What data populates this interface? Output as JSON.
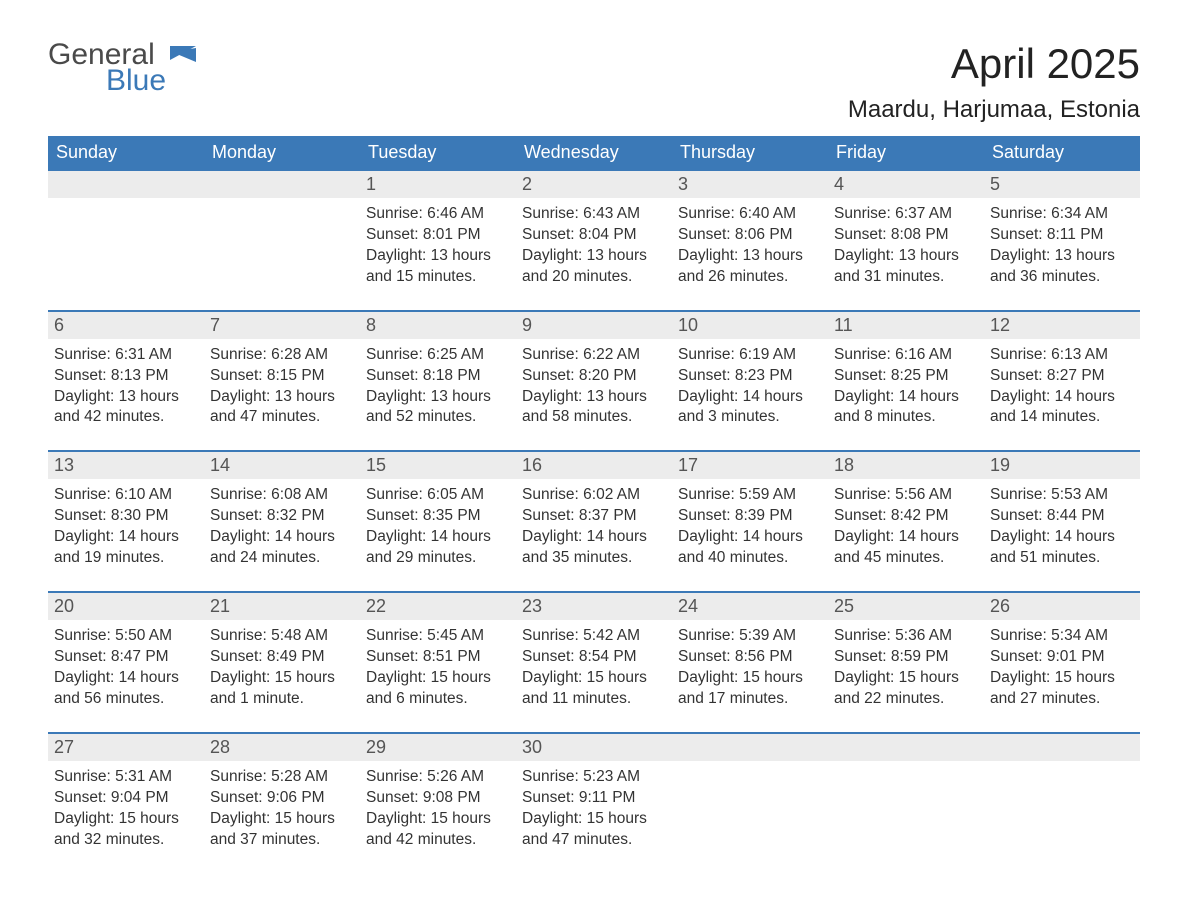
{
  "brand": {
    "word1": "General",
    "word2": "Blue",
    "word1_color": "#4a4a4a",
    "word2_color": "#3b79b7",
    "flag_color": "#3b79b7"
  },
  "header": {
    "month_title": "April 2025",
    "location": "Maardu, Harjumaa, Estonia",
    "title_fontsize": 42,
    "location_fontsize": 24
  },
  "colors": {
    "header_bg": "#3b79b7",
    "header_text": "#ffffff",
    "daynum_bg": "#ececec",
    "daynum_text": "#555555",
    "body_text": "#333333",
    "week_divider": "#3b79b7",
    "page_bg": "#ffffff"
  },
  "weekdays": [
    "Sunday",
    "Monday",
    "Tuesday",
    "Wednesday",
    "Thursday",
    "Friday",
    "Saturday"
  ],
  "calendar": {
    "type": "table",
    "columns": 7,
    "rows": 5,
    "weeks": [
      [
        {
          "day": null
        },
        {
          "day": null
        },
        {
          "day": "1",
          "sunrise": "Sunrise: 6:46 AM",
          "sunset": "Sunset: 8:01 PM",
          "daylight1": "Daylight: 13 hours",
          "daylight2": "and 15 minutes."
        },
        {
          "day": "2",
          "sunrise": "Sunrise: 6:43 AM",
          "sunset": "Sunset: 8:04 PM",
          "daylight1": "Daylight: 13 hours",
          "daylight2": "and 20 minutes."
        },
        {
          "day": "3",
          "sunrise": "Sunrise: 6:40 AM",
          "sunset": "Sunset: 8:06 PM",
          "daylight1": "Daylight: 13 hours",
          "daylight2": "and 26 minutes."
        },
        {
          "day": "4",
          "sunrise": "Sunrise: 6:37 AM",
          "sunset": "Sunset: 8:08 PM",
          "daylight1": "Daylight: 13 hours",
          "daylight2": "and 31 minutes."
        },
        {
          "day": "5",
          "sunrise": "Sunrise: 6:34 AM",
          "sunset": "Sunset: 8:11 PM",
          "daylight1": "Daylight: 13 hours",
          "daylight2": "and 36 minutes."
        }
      ],
      [
        {
          "day": "6",
          "sunrise": "Sunrise: 6:31 AM",
          "sunset": "Sunset: 8:13 PM",
          "daylight1": "Daylight: 13 hours",
          "daylight2": "and 42 minutes."
        },
        {
          "day": "7",
          "sunrise": "Sunrise: 6:28 AM",
          "sunset": "Sunset: 8:15 PM",
          "daylight1": "Daylight: 13 hours",
          "daylight2": "and 47 minutes."
        },
        {
          "day": "8",
          "sunrise": "Sunrise: 6:25 AM",
          "sunset": "Sunset: 8:18 PM",
          "daylight1": "Daylight: 13 hours",
          "daylight2": "and 52 minutes."
        },
        {
          "day": "9",
          "sunrise": "Sunrise: 6:22 AM",
          "sunset": "Sunset: 8:20 PM",
          "daylight1": "Daylight: 13 hours",
          "daylight2": "and 58 minutes."
        },
        {
          "day": "10",
          "sunrise": "Sunrise: 6:19 AM",
          "sunset": "Sunset: 8:23 PM",
          "daylight1": "Daylight: 14 hours",
          "daylight2": "and 3 minutes."
        },
        {
          "day": "11",
          "sunrise": "Sunrise: 6:16 AM",
          "sunset": "Sunset: 8:25 PM",
          "daylight1": "Daylight: 14 hours",
          "daylight2": "and 8 minutes."
        },
        {
          "day": "12",
          "sunrise": "Sunrise: 6:13 AM",
          "sunset": "Sunset: 8:27 PM",
          "daylight1": "Daylight: 14 hours",
          "daylight2": "and 14 minutes."
        }
      ],
      [
        {
          "day": "13",
          "sunrise": "Sunrise: 6:10 AM",
          "sunset": "Sunset: 8:30 PM",
          "daylight1": "Daylight: 14 hours",
          "daylight2": "and 19 minutes."
        },
        {
          "day": "14",
          "sunrise": "Sunrise: 6:08 AM",
          "sunset": "Sunset: 8:32 PM",
          "daylight1": "Daylight: 14 hours",
          "daylight2": "and 24 minutes."
        },
        {
          "day": "15",
          "sunrise": "Sunrise: 6:05 AM",
          "sunset": "Sunset: 8:35 PM",
          "daylight1": "Daylight: 14 hours",
          "daylight2": "and 29 minutes."
        },
        {
          "day": "16",
          "sunrise": "Sunrise: 6:02 AM",
          "sunset": "Sunset: 8:37 PM",
          "daylight1": "Daylight: 14 hours",
          "daylight2": "and 35 minutes."
        },
        {
          "day": "17",
          "sunrise": "Sunrise: 5:59 AM",
          "sunset": "Sunset: 8:39 PM",
          "daylight1": "Daylight: 14 hours",
          "daylight2": "and 40 minutes."
        },
        {
          "day": "18",
          "sunrise": "Sunrise: 5:56 AM",
          "sunset": "Sunset: 8:42 PM",
          "daylight1": "Daylight: 14 hours",
          "daylight2": "and 45 minutes."
        },
        {
          "day": "19",
          "sunrise": "Sunrise: 5:53 AM",
          "sunset": "Sunset: 8:44 PM",
          "daylight1": "Daylight: 14 hours",
          "daylight2": "and 51 minutes."
        }
      ],
      [
        {
          "day": "20",
          "sunrise": "Sunrise: 5:50 AM",
          "sunset": "Sunset: 8:47 PM",
          "daylight1": "Daylight: 14 hours",
          "daylight2": "and 56 minutes."
        },
        {
          "day": "21",
          "sunrise": "Sunrise: 5:48 AM",
          "sunset": "Sunset: 8:49 PM",
          "daylight1": "Daylight: 15 hours",
          "daylight2": "and 1 minute."
        },
        {
          "day": "22",
          "sunrise": "Sunrise: 5:45 AM",
          "sunset": "Sunset: 8:51 PM",
          "daylight1": "Daylight: 15 hours",
          "daylight2": "and 6 minutes."
        },
        {
          "day": "23",
          "sunrise": "Sunrise: 5:42 AM",
          "sunset": "Sunset: 8:54 PM",
          "daylight1": "Daylight: 15 hours",
          "daylight2": "and 11 minutes."
        },
        {
          "day": "24",
          "sunrise": "Sunrise: 5:39 AM",
          "sunset": "Sunset: 8:56 PM",
          "daylight1": "Daylight: 15 hours",
          "daylight2": "and 17 minutes."
        },
        {
          "day": "25",
          "sunrise": "Sunrise: 5:36 AM",
          "sunset": "Sunset: 8:59 PM",
          "daylight1": "Daylight: 15 hours",
          "daylight2": "and 22 minutes."
        },
        {
          "day": "26",
          "sunrise": "Sunrise: 5:34 AM",
          "sunset": "Sunset: 9:01 PM",
          "daylight1": "Daylight: 15 hours",
          "daylight2": "and 27 minutes."
        }
      ],
      [
        {
          "day": "27",
          "sunrise": "Sunrise: 5:31 AM",
          "sunset": "Sunset: 9:04 PM",
          "daylight1": "Daylight: 15 hours",
          "daylight2": "and 32 minutes."
        },
        {
          "day": "28",
          "sunrise": "Sunrise: 5:28 AM",
          "sunset": "Sunset: 9:06 PM",
          "daylight1": "Daylight: 15 hours",
          "daylight2": "and 37 minutes."
        },
        {
          "day": "29",
          "sunrise": "Sunrise: 5:26 AM",
          "sunset": "Sunset: 9:08 PM",
          "daylight1": "Daylight: 15 hours",
          "daylight2": "and 42 minutes."
        },
        {
          "day": "30",
          "sunrise": "Sunrise: 5:23 AM",
          "sunset": "Sunset: 9:11 PM",
          "daylight1": "Daylight: 15 hours",
          "daylight2": "and 47 minutes."
        },
        {
          "day": null
        },
        {
          "day": null
        },
        {
          "day": null
        }
      ]
    ]
  }
}
